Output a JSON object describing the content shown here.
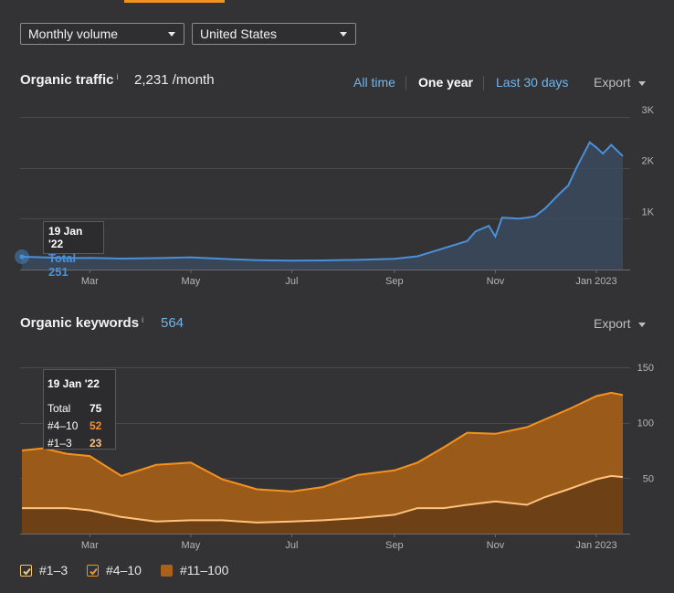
{
  "filters": {
    "volume_mode": "Monthly volume",
    "country": "United States"
  },
  "traffic": {
    "title": "Organic traffic",
    "info_icon": "i",
    "value": "2,231 /month",
    "ranges": [
      "All time",
      "One year",
      "Last 30 days"
    ],
    "active_range": "One year",
    "export_label": "Export",
    "tooltip": {
      "date": "19 Jan '22",
      "label": "Total",
      "value": "251"
    }
  },
  "keywords": {
    "title": "Organic keywords",
    "info_icon": "i",
    "value": "564",
    "export_label": "Export",
    "tooltip": {
      "date": "19 Jan '22",
      "rows": [
        {
          "label": "Total",
          "value": "75"
        },
        {
          "label": "#4–10",
          "value": "52"
        },
        {
          "label": "#1–3",
          "value": "23"
        }
      ]
    }
  },
  "legend": [
    {
      "label": "#1–3",
      "color": "#ffc37d",
      "checked": true
    },
    {
      "label": "#4–10",
      "color": "#f5921f",
      "checked": true
    },
    {
      "label": "#11–100",
      "color": "#a8621c",
      "checked": false
    }
  ],
  "chart_data": [
    {
      "type": "area",
      "title": "Organic traffic",
      "x_tick_labels": [
        "Mar",
        "May",
        "Jul",
        "Sep",
        "Nov",
        "Jan 2023"
      ],
      "y_tick_labels": [
        "1K",
        "2K",
        "3K"
      ],
      "ylim": [
        0,
        3000
      ],
      "xlim": [
        "2022-01-19",
        "2023-01-17"
      ],
      "grid": true,
      "series": [
        {
          "color": "#4a90d9",
          "points": [
            [
              "2022-01-19",
              251
            ],
            [
              "2022-02-01",
              240
            ],
            [
              "2022-02-15",
              225
            ],
            [
              "2022-03-01",
              230
            ],
            [
              "2022-03-20",
              215
            ],
            [
              "2022-04-10",
              225
            ],
            [
              "2022-05-01",
              240
            ],
            [
              "2022-05-20",
              210
            ],
            [
              "2022-06-10",
              185
            ],
            [
              "2022-07-01",
              175
            ],
            [
              "2022-07-20",
              180
            ],
            [
              "2022-08-10",
              190
            ],
            [
              "2022-09-01",
              210
            ],
            [
              "2022-09-15",
              260
            ],
            [
              "2022-10-01",
              420
            ],
            [
              "2022-10-15",
              560
            ],
            [
              "2022-10-20",
              750
            ],
            [
              "2022-10-28",
              860
            ],
            [
              "2022-11-01",
              650
            ],
            [
              "2022-11-05",
              1020
            ],
            [
              "2022-11-15",
              1000
            ],
            [
              "2022-11-20",
              1020
            ],
            [
              "2022-11-25",
              1050
            ],
            [
              "2022-12-01",
              1200
            ],
            [
              "2022-12-10",
              1500
            ],
            [
              "2022-12-15",
              1650
            ],
            [
              "2022-12-20",
              2000
            ],
            [
              "2022-12-28",
              2500
            ],
            [
              "2023-01-01",
              2400
            ],
            [
              "2023-01-05",
              2280
            ],
            [
              "2023-01-10",
              2450
            ],
            [
              "2023-01-17",
              2231
            ]
          ]
        }
      ]
    },
    {
      "type": "area",
      "title": "Organic keywords",
      "x_tick_labels": [
        "Mar",
        "May",
        "Jul",
        "Sep",
        "Nov",
        "Jan 2023"
      ],
      "y_tick_labels": [
        "50",
        "100",
        "150"
      ],
      "ylim": [
        0,
        150
      ],
      "xlim": [
        "2022-01-19",
        "2023-01-17"
      ],
      "grid": true,
      "stacked": true,
      "series": [
        {
          "name": "#1–3",
          "color": "#ffc37d",
          "points": [
            [
              "2022-01-19",
              23
            ],
            [
              "2022-02-15",
              23
            ],
            [
              "2022-03-01",
              21
            ],
            [
              "2022-03-20",
              15
            ],
            [
              "2022-04-10",
              11
            ],
            [
              "2022-05-01",
              12
            ],
            [
              "2022-05-20",
              12
            ],
            [
              "2022-06-10",
              10
            ],
            [
              "2022-07-01",
              11
            ],
            [
              "2022-07-20",
              12
            ],
            [
              "2022-08-10",
              14
            ],
            [
              "2022-09-01",
              17
            ],
            [
              "2022-09-15",
              23
            ],
            [
              "2022-10-01",
              23
            ],
            [
              "2022-10-15",
              26
            ],
            [
              "2022-11-01",
              29
            ],
            [
              "2022-11-20",
              26
            ],
            [
              "2022-12-01",
              33
            ],
            [
              "2022-12-15",
              40
            ],
            [
              "2023-01-01",
              49
            ],
            [
              "2023-01-10",
              52
            ],
            [
              "2023-01-17",
              51
            ]
          ]
        },
        {
          "name": "#4–10",
          "color": "#f5921f",
          "points": [
            [
              "2022-01-19",
              75
            ],
            [
              "2022-02-01",
              77
            ],
            [
              "2022-02-15",
              72
            ],
            [
              "2022-03-01",
              70
            ],
            [
              "2022-03-20",
              52
            ],
            [
              "2022-04-10",
              62
            ],
            [
              "2022-05-01",
              64
            ],
            [
              "2022-05-20",
              49
            ],
            [
              "2022-06-10",
              40
            ],
            [
              "2022-07-01",
              38
            ],
            [
              "2022-07-20",
              42
            ],
            [
              "2022-08-10",
              53
            ],
            [
              "2022-09-01",
              57
            ],
            [
              "2022-09-15",
              64
            ],
            [
              "2022-10-01",
              78
            ],
            [
              "2022-10-15",
              91
            ],
            [
              "2022-11-01",
              90
            ],
            [
              "2022-11-20",
              96
            ],
            [
              "2022-12-01",
              103
            ],
            [
              "2022-12-15",
              112
            ],
            [
              "2023-01-01",
              124
            ],
            [
              "2023-01-10",
              127
            ],
            [
              "2023-01-17",
              125
            ]
          ]
        }
      ]
    }
  ]
}
